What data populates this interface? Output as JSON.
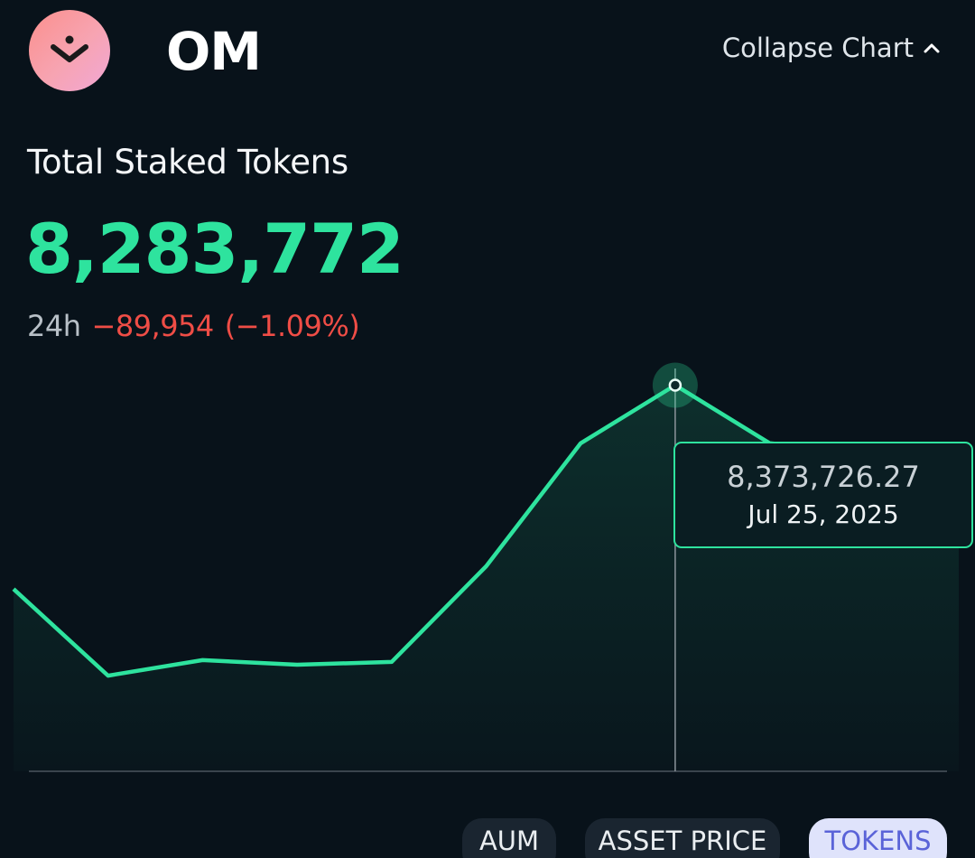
{
  "header": {
    "token_symbol": "OM",
    "collapse_label": "Collapse Chart"
  },
  "metric": {
    "title": "Total Staked Tokens",
    "value": "8,283,772",
    "change_period": "24h",
    "change_abs": "−89,954",
    "change_pct": "(−1.09%)"
  },
  "tooltip": {
    "value": "8,373,726.27",
    "date": "Jul 25, 2025"
  },
  "tabs": [
    {
      "label": "AUM",
      "active": false
    },
    {
      "label": "ASSET PRICE",
      "active": false
    },
    {
      "label": "TOKENS",
      "active": true
    }
  ],
  "colors": {
    "accent_green": "#2ee39e",
    "negative_red": "#ef4d46",
    "background": "#08121a",
    "active_tab_bg": "#dfe3fb",
    "active_tab_text": "#5a63d8"
  },
  "chart_data": {
    "type": "area",
    "title": "",
    "xlabel": "",
    "ylabel": "",
    "x": [
      "",
      "",
      "",
      "",
      "",
      "",
      "",
      "",
      "",
      "",
      ""
    ],
    "series": [
      {
        "values": [
          8150000,
          8055000,
          8072000,
          8067000,
          8070000,
          8175000,
          8310000,
          8373726.27,
          8310000,
          8300000,
          8283772
        ]
      }
    ],
    "highlight_index": 7,
    "ylim": [
      7950000,
      8400000
    ],
    "grid": false,
    "legend": "none"
  }
}
